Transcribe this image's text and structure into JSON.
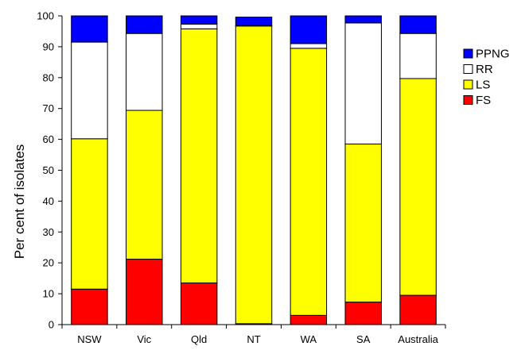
{
  "chart_data": {
    "type": "bar",
    "stacked": true,
    "title": "",
    "xlabel": "",
    "ylabel": "Per cent of isolates",
    "ylim": [
      0,
      100
    ],
    "yticks": [
      0,
      10,
      20,
      30,
      40,
      50,
      60,
      70,
      80,
      90,
      100
    ],
    "grid": false,
    "legend_position": "right",
    "categories": [
      "NSW",
      "Vic",
      "Qld",
      "NT",
      "WA",
      "SA",
      "Australia"
    ],
    "series": [
      {
        "name": "FS",
        "color": "#ff0000",
        "values": [
          11.5,
          21.2,
          13.5,
          0.3,
          3.0,
          7.3,
          9.5
        ]
      },
      {
        "name": "LS",
        "color": "#ffff00",
        "values": [
          48.7,
          48.2,
          82.3,
          96.4,
          86.5,
          51.2,
          70.2
        ]
      },
      {
        "name": "RR",
        "color": "#ffffff",
        "values": [
          31.3,
          24.9,
          1.5,
          0.2,
          1.5,
          39.2,
          14.6
        ]
      },
      {
        "name": "PPNG",
        "color": "#0000ff",
        "values": [
          8.5,
          5.7,
          2.7,
          2.7,
          9.0,
          2.3,
          5.7
        ]
      }
    ],
    "legend_order": [
      "PPNG",
      "RR",
      "LS",
      "FS"
    ]
  }
}
